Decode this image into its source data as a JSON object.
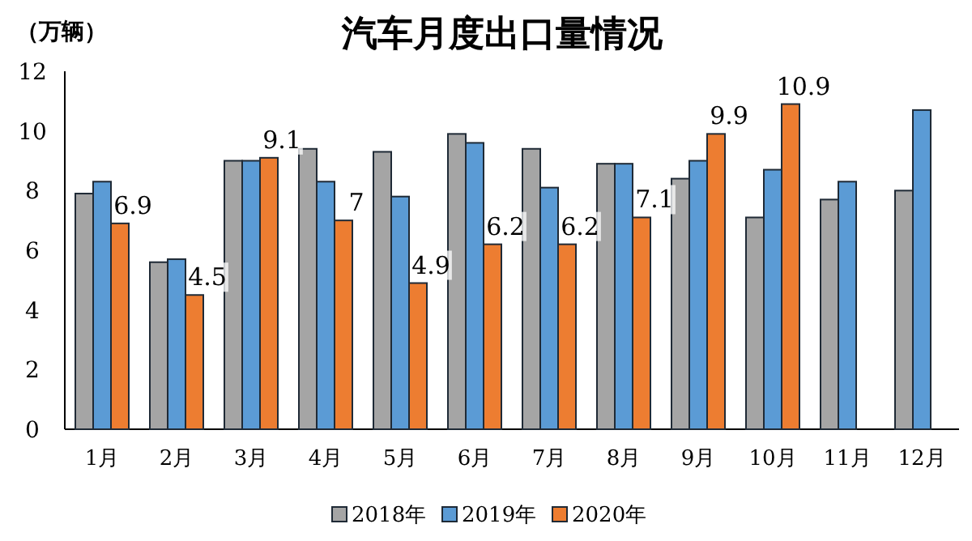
{
  "chart_data": {
    "type": "bar",
    "title": "汽车月度出口量情况",
    "ylabel": "（万辆）",
    "categories": [
      "1月",
      "2月",
      "3月",
      "4月",
      "5月",
      "6月",
      "7月",
      "8月",
      "9月",
      "10月",
      "11月",
      "12月"
    ],
    "series": [
      {
        "name": "2018年",
        "color": "#a5a5a5",
        "values": [
          7.9,
          5.6,
          9.0,
          9.4,
          9.3,
          9.9,
          9.4,
          8.9,
          8.4,
          7.1,
          7.7,
          8.0
        ]
      },
      {
        "name": "2019年",
        "color": "#5b9bd5",
        "values": [
          8.3,
          5.7,
          9.0,
          8.3,
          7.8,
          9.6,
          8.1,
          8.9,
          9.0,
          8.7,
          8.3,
          10.7
        ]
      },
      {
        "name": "2020年",
        "color": "#ed7d31",
        "values": [
          6.9,
          4.5,
          9.1,
          7,
          4.9,
          6.2,
          6.2,
          7.1,
          9.9,
          10.9,
          null,
          null
        ],
        "value_labels": [
          "6.9",
          "4.5",
          "9.1",
          "7",
          "4.9",
          "6.2",
          "6.2",
          "7.1",
          "9.9",
          "10.9",
          null,
          null
        ]
      }
    ],
    "ylim": [
      0,
      12
    ],
    "yticks": [
      0,
      2,
      4,
      6,
      8,
      10,
      12
    ],
    "legend": "bottom"
  }
}
